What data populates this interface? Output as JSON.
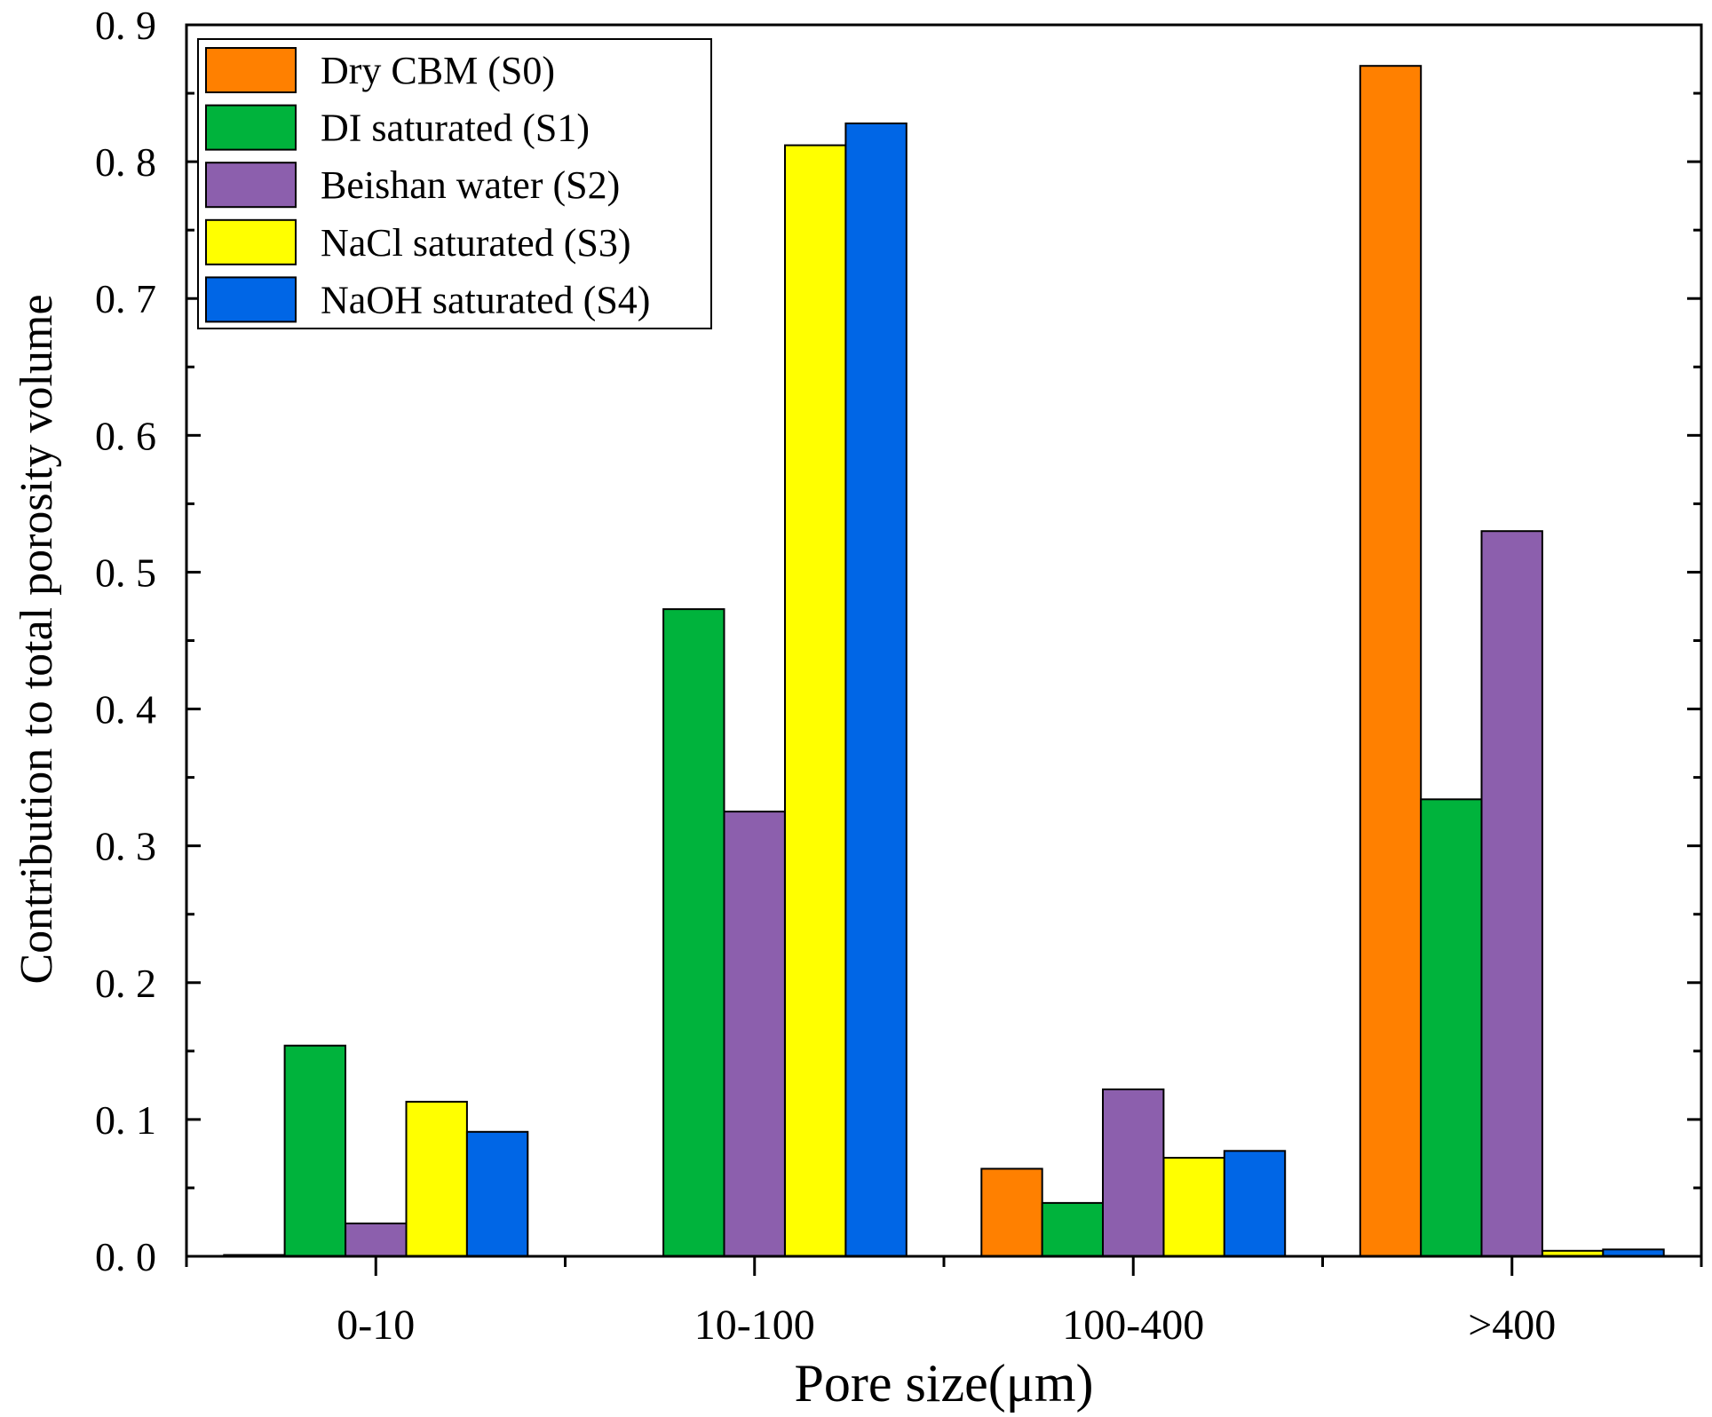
{
  "chart_data": {
    "type": "bar",
    "title": "",
    "xlabel": "Pore size(μm)",
    "ylabel": "Contribution to total porosity volume",
    "categories": [
      "0-10",
      "10-100",
      "100-400",
      ">400"
    ],
    "ylim": [
      0,
      0.9
    ],
    "yticks": [
      "0. 0",
      "0. 1",
      "0. 2",
      "0. 3",
      "0. 4",
      "0. 5",
      "0. 6",
      "0. 7",
      "0. 8",
      "0. 9"
    ],
    "legend_position": "top-left",
    "series": [
      {
        "name": "Dry CBM (S0)",
        "color": "#FF8000",
        "values": [
          0.001,
          0.0,
          0.064,
          0.87
        ]
      },
      {
        "name": "DI saturated (S1)",
        "color": "#00B33C",
        "values": [
          0.154,
          0.473,
          0.039,
          0.334
        ]
      },
      {
        "name": "Beishan water (S2)",
        "color": "#8C5FAD",
        "values": [
          0.024,
          0.325,
          0.122,
          0.53
        ]
      },
      {
        "name": "NaCl saturated (S3)",
        "color": "#FFFF00",
        "values": [
          0.113,
          0.812,
          0.072,
          0.004
        ]
      },
      {
        "name": "NaOH saturated (S4)",
        "color": "#0066E6",
        "values": [
          0.091,
          0.828,
          0.077,
          0.005
        ]
      }
    ]
  }
}
